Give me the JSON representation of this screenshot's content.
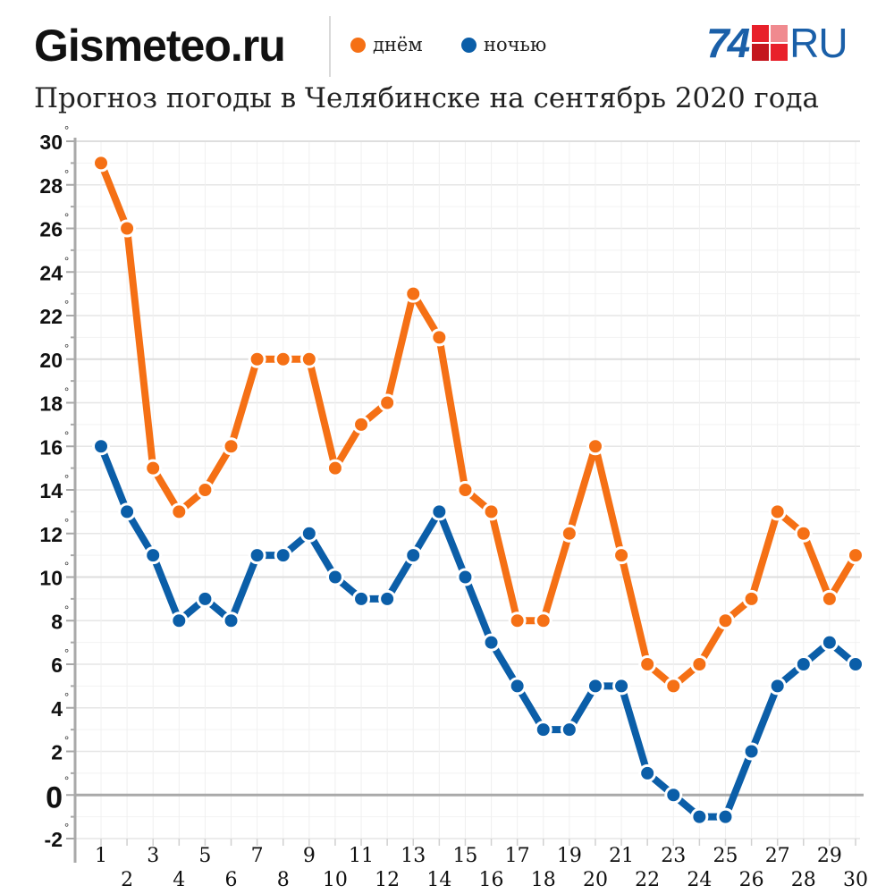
{
  "header": {
    "brand": "Gismeteo.ru",
    "title": "Прогноз погоды в Челябинске на сентябрь 2020 года",
    "logo_number": "74",
    "logo_text": "RU"
  },
  "legend": {
    "day_label": "днём",
    "night_label": "ночью"
  },
  "colors": {
    "day": "#f57015",
    "night": "#0b5ea8",
    "logo_blue": "#1a5fa8",
    "logo_red": "#e8202a"
  },
  "chart_data": {
    "type": "line",
    "title": "Прогноз погоды в Челябинске на сентябрь 2020 года",
    "xlabel": "",
    "ylabel": "",
    "x": [
      1,
      2,
      3,
      4,
      5,
      6,
      7,
      8,
      9,
      10,
      11,
      12,
      13,
      14,
      15,
      16,
      17,
      18,
      19,
      20,
      21,
      22,
      23,
      24,
      25,
      26,
      27,
      28,
      29,
      30
    ],
    "x_tick_labels": [
      "1",
      "2",
      "3",
      "4",
      "5",
      "6",
      "7",
      "8",
      "9",
      "10",
      "11",
      "12",
      "13",
      "14",
      "15",
      "16",
      "17",
      "18",
      "19",
      "20",
      "21",
      "22",
      "23",
      "24",
      "25",
      "26",
      "27",
      "28",
      "29",
      "30"
    ],
    "y_ticks": [
      -2,
      0,
      2,
      4,
      6,
      8,
      10,
      12,
      14,
      16,
      18,
      20,
      22,
      24,
      26,
      28,
      30
    ],
    "y_tick_labels": [
      "-2",
      "0",
      "2",
      "4",
      "6",
      "8",
      "10",
      "12",
      "14",
      "16",
      "18",
      "20",
      "22",
      "24",
      "26",
      "28",
      "30"
    ],
    "degree_symbol": "°",
    "ylim": [
      -2,
      30
    ],
    "grid": true,
    "legend_position": "top",
    "series": [
      {
        "name": "днём",
        "color": "#f57015",
        "values": [
          29,
          26,
          15,
          13,
          14,
          16,
          20,
          20,
          20,
          15,
          17,
          18,
          23,
          21,
          14,
          13,
          8,
          8,
          12,
          16,
          11,
          6,
          5,
          6,
          8,
          9,
          13,
          12,
          9,
          11
        ]
      },
      {
        "name": "ночью",
        "color": "#0b5ea8",
        "values": [
          16,
          13,
          11,
          8,
          9,
          8,
          11,
          11,
          12,
          10,
          9,
          9,
          11,
          13,
          10,
          7,
          5,
          3,
          3,
          5,
          5,
          1,
          0,
          -1,
          -1,
          2,
          5,
          6,
          7,
          6
        ]
      }
    ]
  }
}
